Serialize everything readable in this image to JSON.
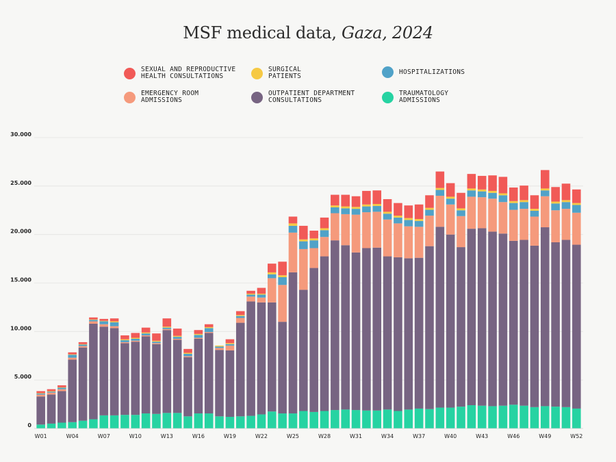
{
  "title": {
    "main": "MSF medical data, ",
    "italic": "Gaza, 2024"
  },
  "legend": [
    {
      "key": "sexual",
      "label": "SEXUAL AND REPRODUCTIVE HEALTH CONSULTATIONS",
      "color": "#f15a57"
    },
    {
      "key": "surgical",
      "label": "SURGICAL PATIENTS",
      "color": "#f6c944"
    },
    {
      "key": "hosp",
      "label": "HOSPITALIZATIONS",
      "color": "#50a2c8"
    },
    {
      "key": "er",
      "label": "EMERGENCY ROOM ADMISSIONS",
      "color": "#f59a7c"
    },
    {
      "key": "opd",
      "label": "OUTPATIENT DEPARTMENT CONSULTATIONS",
      "color": "#776482"
    },
    {
      "key": "trauma",
      "label": "TRAUMATOLOGY ADMISSIONS",
      "color": "#26d3a2"
    }
  ],
  "chart_data": {
    "type": "bar",
    "stacked": true,
    "title": "MSF medical data, Gaza, 2024",
    "xlabel": "",
    "ylabel": "",
    "ylim": [
      0,
      30000
    ],
    "y_ticks": [
      0,
      5000,
      10000,
      15000,
      20000,
      25000,
      30000
    ],
    "y_tick_labels": [
      "0",
      "5.000",
      "10.000",
      "15.000",
      "20.000",
      "25.000",
      "30.000"
    ],
    "x_tick_labels": [
      "W01",
      "W04",
      "W07",
      "W10",
      "W13",
      "W16",
      "W19",
      "W22",
      "W25",
      "W28",
      "W31",
      "W34",
      "W37",
      "W40",
      "W43",
      "W46",
      "W49",
      "W52"
    ],
    "categories": [
      "W01",
      "W02",
      "W03",
      "W04",
      "W05",
      "W06",
      "W07",
      "W08",
      "W09",
      "W10",
      "W11",
      "W12",
      "W13",
      "W14",
      "W15",
      "W16",
      "W17",
      "W18",
      "W19",
      "W20",
      "W21",
      "W22",
      "W23",
      "W24",
      "W25",
      "W26",
      "W27",
      "W28",
      "W29",
      "W30",
      "W31",
      "W32",
      "W33",
      "W34",
      "W35",
      "W36",
      "W37",
      "W38",
      "W39",
      "W40",
      "W41",
      "W42",
      "W43",
      "W44",
      "W45",
      "W46",
      "W47",
      "W48",
      "W49",
      "W50",
      "W51",
      "W52"
    ],
    "series": [
      {
        "name": "Traumatology admissions",
        "color": "#26d3a2",
        "values": [
          400,
          500,
          600,
          650,
          800,
          950,
          1350,
          1350,
          1400,
          1400,
          1550,
          1500,
          1600,
          1600,
          1250,
          1550,
          1550,
          1250,
          1200,
          1250,
          1300,
          1450,
          1750,
          1550,
          1550,
          1800,
          1700,
          1800,
          1900,
          1950,
          1900,
          1850,
          1850,
          1950,
          1800,
          1950,
          2050,
          2000,
          2150,
          2150,
          2250,
          2400,
          2350,
          2300,
          2350,
          2450,
          2350,
          2200,
          2300,
          2250,
          2200,
          2050
        ]
      },
      {
        "name": "Outpatient department consultations",
        "color": "#776482",
        "values": [
          2900,
          3000,
          3250,
          6450,
          7550,
          9850,
          9150,
          9000,
          7400,
          7550,
          7950,
          7200,
          8550,
          7550,
          6100,
          7700,
          8300,
          6850,
          6850,
          9650,
          11800,
          11550,
          11250,
          9450,
          14550,
          12500,
          14850,
          15950,
          17500,
          16950,
          16250,
          16750,
          16800,
          15800,
          15850,
          15600,
          15550,
          16800,
          18650,
          17850,
          16450,
          18200,
          18300,
          18000,
          17750,
          16900,
          17100,
          16650,
          18450,
          16950,
          17250,
          16900
        ]
      },
      {
        "name": "Emergency room admissions",
        "color": "#f59a7c",
        "values": [
          200,
          200,
          200,
          200,
          150,
          250,
          250,
          200,
          100,
          100,
          100,
          100,
          100,
          100,
          100,
          100,
          100,
          200,
          500,
          500,
          500,
          500,
          2500,
          3800,
          4100,
          4200,
          2050,
          2000,
          2800,
          3200,
          3900,
          3700,
          3700,
          3800,
          3500,
          3300,
          3200,
          3150,
          3200,
          3100,
          3200,
          3300,
          3200,
          3400,
          3250,
          3200,
          3200,
          3000,
          3200,
          3300,
          3200,
          3300
        ]
      },
      {
        "name": "Hospitalizations",
        "color": "#50a2c8",
        "values": [
          100,
          100,
          150,
          300,
          150,
          150,
          300,
          400,
          200,
          200,
          200,
          150,
          150,
          200,
          250,
          300,
          400,
          150,
          150,
          200,
          200,
          300,
          400,
          800,
          700,
          800,
          800,
          700,
          600,
          600,
          600,
          600,
          600,
          600,
          600,
          650,
          600,
          600,
          600,
          600,
          600,
          650,
          600,
          600,
          700,
          700,
          700,
          600,
          600,
          700,
          700,
          800
        ]
      },
      {
        "name": "Surgical patients",
        "color": "#f6c944",
        "values": [
          50,
          50,
          50,
          50,
          50,
          50,
          50,
          100,
          100,
          100,
          100,
          100,
          100,
          100,
          100,
          100,
          100,
          100,
          100,
          100,
          100,
          100,
          200,
          200,
          250,
          200,
          200,
          200,
          200,
          200,
          200,
          200,
          200,
          200,
          200,
          200,
          200,
          200,
          200,
          200,
          200,
          200,
          200,
          200,
          200,
          200,
          200,
          200,
          200,
          200,
          200,
          200
        ]
      },
      {
        "name": "Sexual and reproductive health consultations",
        "color": "#f15a57",
        "values": [
          200,
          200,
          200,
          200,
          200,
          200,
          200,
          300,
          400,
          500,
          500,
          750,
          850,
          750,
          400,
          400,
          300,
          0,
          400,
          400,
          300,
          600,
          900,
          1400,
          700,
          1400,
          800,
          1100,
          1100,
          1200,
          1100,
          1400,
          1400,
          1300,
          1300,
          1300,
          1500,
          1300,
          1700,
          1400,
          1600,
          1500,
          1400,
          1600,
          1700,
          1400,
          1500,
          1400,
          1900,
          1500,
          1700,
          1400
        ]
      }
    ]
  }
}
